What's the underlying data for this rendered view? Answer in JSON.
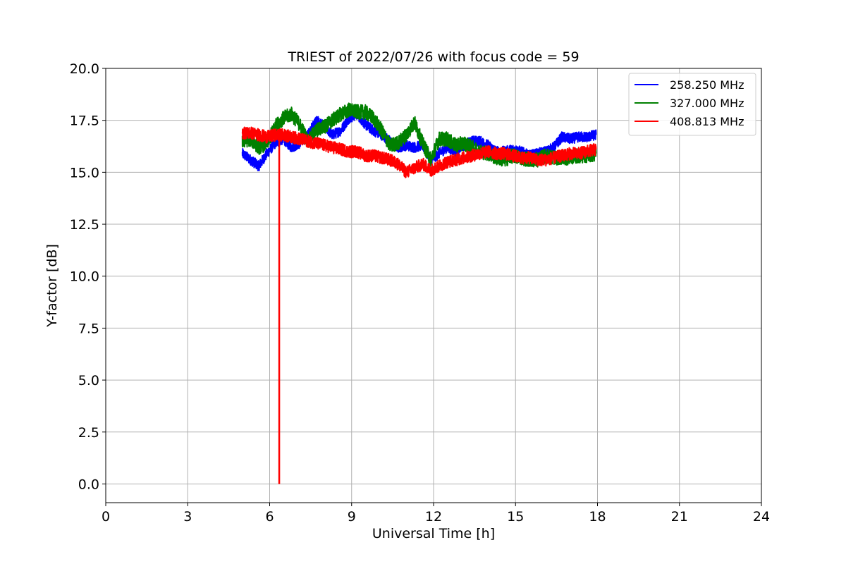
{
  "chart_data": {
    "type": "line",
    "title": "TRIEST of 2022/07/26 with focus code = 59",
    "xlabel": "Universal Time [h]",
    "ylabel": "Y-factor [dB]",
    "xlim": [
      0,
      24
    ],
    "ylim": [
      -0.9,
      20.0
    ],
    "xticks": [
      0,
      3,
      6,
      9,
      12,
      15,
      18,
      21,
      24
    ],
    "xtick_labels": [
      "0",
      "3",
      "6",
      "9",
      "12",
      "15",
      "18",
      "21",
      "24"
    ],
    "yticks": [
      0.0,
      2.5,
      5.0,
      7.5,
      10.0,
      12.5,
      15.0,
      17.5,
      20.0
    ],
    "ytick_labels": [
      "0.0",
      "2.5",
      "5.0",
      "7.5",
      "10.0",
      "12.5",
      "15.0",
      "17.5",
      "20.0"
    ],
    "grid": true,
    "legend_position": "top-right",
    "series": [
      {
        "name": "258.250 MHz",
        "color": "#0000ff",
        "noise": 0.25,
        "x": [
          5.0,
          5.3,
          5.6,
          5.9,
          6.2,
          6.5,
          6.8,
          7.1,
          7.4,
          7.7,
          8.0,
          8.3,
          8.6,
          8.9,
          9.2,
          9.5,
          9.8,
          10.1,
          10.4,
          10.7,
          11.0,
          11.3,
          11.6,
          11.9,
          12.2,
          12.5,
          12.8,
          13.1,
          13.4,
          13.7,
          14.0,
          14.3,
          14.6,
          14.9,
          15.2,
          15.5,
          15.8,
          16.1,
          16.4,
          16.7,
          17.0,
          17.3,
          17.6,
          17.95
        ],
        "y": [
          15.9,
          15.6,
          15.3,
          15.9,
          16.4,
          16.6,
          16.2,
          16.4,
          16.8,
          17.5,
          17.2,
          16.8,
          17.0,
          17.6,
          17.8,
          17.3,
          17.0,
          16.8,
          16.5,
          16.2,
          16.3,
          16.2,
          16.3,
          15.6,
          15.9,
          16.2,
          16.0,
          16.3,
          16.5,
          16.5,
          16.3,
          16.0,
          16.0,
          16.1,
          16.0,
          15.8,
          15.9,
          16.0,
          16.2,
          16.7,
          16.6,
          16.7,
          16.7,
          16.8
        ]
      },
      {
        "name": "327.000 MHz",
        "color": "#008000",
        "noise": 0.35,
        "x": [
          5.0,
          5.3,
          5.6,
          5.9,
          6.2,
          6.5,
          6.8,
          7.1,
          7.4,
          7.7,
          8.0,
          8.3,
          8.6,
          8.9,
          9.2,
          9.5,
          9.8,
          10.1,
          10.4,
          10.7,
          11.0,
          11.3,
          11.6,
          11.9,
          12.2,
          12.5,
          12.8,
          13.1,
          13.4,
          13.7,
          14.0,
          14.3,
          14.6,
          14.9,
          15.2,
          15.5,
          15.8,
          16.1,
          16.4,
          16.7,
          17.0,
          17.3,
          17.6,
          17.95
        ],
        "y": [
          16.5,
          16.6,
          16.2,
          16.4,
          17.2,
          17.6,
          17.8,
          17.3,
          16.5,
          17.0,
          17.2,
          17.5,
          17.8,
          18.0,
          17.9,
          17.9,
          17.6,
          17.0,
          16.3,
          16.4,
          16.8,
          17.4,
          16.4,
          15.6,
          16.6,
          16.6,
          16.3,
          16.4,
          16.2,
          16.0,
          15.9,
          15.7,
          15.6,
          15.8,
          15.7,
          15.6,
          15.6,
          15.8,
          15.7,
          15.7,
          15.7,
          15.8,
          15.8,
          15.9
        ]
      },
      {
        "name": "408.813 MHz",
        "color": "#ff0000",
        "noise": 0.3,
        "x": [
          5.0,
          5.3,
          5.6,
          5.9,
          6.2,
          6.5,
          6.8,
          7.1,
          7.4,
          7.7,
          8.0,
          8.3,
          8.6,
          8.9,
          9.2,
          9.5,
          9.8,
          10.1,
          10.4,
          10.7,
          11.0,
          11.3,
          11.6,
          11.9,
          12.2,
          12.5,
          12.8,
          13.1,
          13.4,
          13.7,
          14.0,
          14.3,
          14.6,
          14.9,
          15.2,
          15.5,
          15.8,
          16.1,
          16.4,
          16.7,
          17.0,
          17.3,
          17.6,
          17.95
        ],
        "y": [
          16.9,
          16.9,
          16.8,
          16.7,
          16.8,
          16.8,
          16.7,
          16.6,
          16.5,
          16.4,
          16.3,
          16.2,
          16.1,
          16.0,
          16.0,
          15.8,
          15.8,
          15.7,
          15.6,
          15.4,
          15.0,
          15.2,
          15.4,
          15.1,
          15.3,
          15.5,
          15.6,
          15.7,
          15.8,
          15.9,
          16.0,
          15.9,
          15.9,
          15.8,
          15.7,
          15.7,
          15.6,
          15.6,
          15.7,
          15.8,
          15.9,
          15.9,
          16.0,
          16.1
        ]
      }
    ],
    "annotations": [
      {
        "type": "spike",
        "series": "408.813 MHz",
        "x": 6.35,
        "y_from": 16.8,
        "y_to": 0.0
      }
    ]
  }
}
